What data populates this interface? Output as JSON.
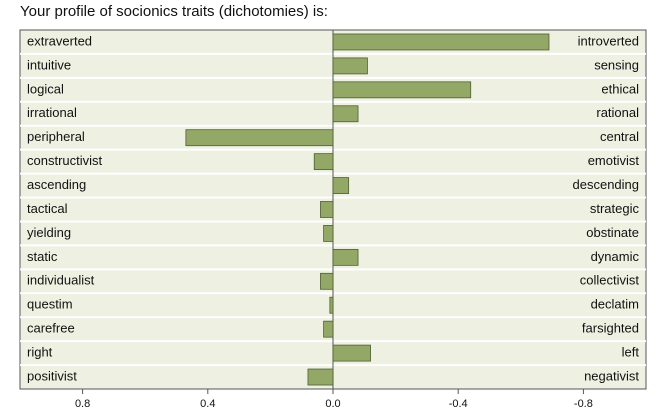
{
  "chart_data": {
    "type": "bar",
    "orientation": "horizontal",
    "title": "Your profile of socionics traits (dichotomies) is:",
    "categories": [
      "extraverted",
      "intuitive",
      "logical",
      "irrational",
      "peripheral",
      "constructivist",
      "ascending",
      "tactical",
      "yielding",
      "static",
      "individualist",
      "questim",
      "carefree",
      "right",
      "positivist"
    ],
    "right_labels": [
      "introverted",
      "sensing",
      "ethical",
      "rational",
      "central",
      "emotivist",
      "descending",
      "strategic",
      "obstinate",
      "dynamic",
      "collectivist",
      "declatim",
      "farsighted",
      "left",
      "negativist"
    ],
    "values": [
      -0.69,
      -0.11,
      -0.44,
      -0.08,
      0.47,
      0.06,
      -0.05,
      0.04,
      0.03,
      -0.08,
      0.04,
      0.01,
      0.03,
      -0.12,
      0.08
    ],
    "color": "#93a867",
    "xlim": [
      1,
      -1
    ],
    "xticks": [
      0.8,
      0.4,
      {
        "value": 0,
        "label": "0.0"
      },
      -0.4,
      -0.8
    ]
  }
}
